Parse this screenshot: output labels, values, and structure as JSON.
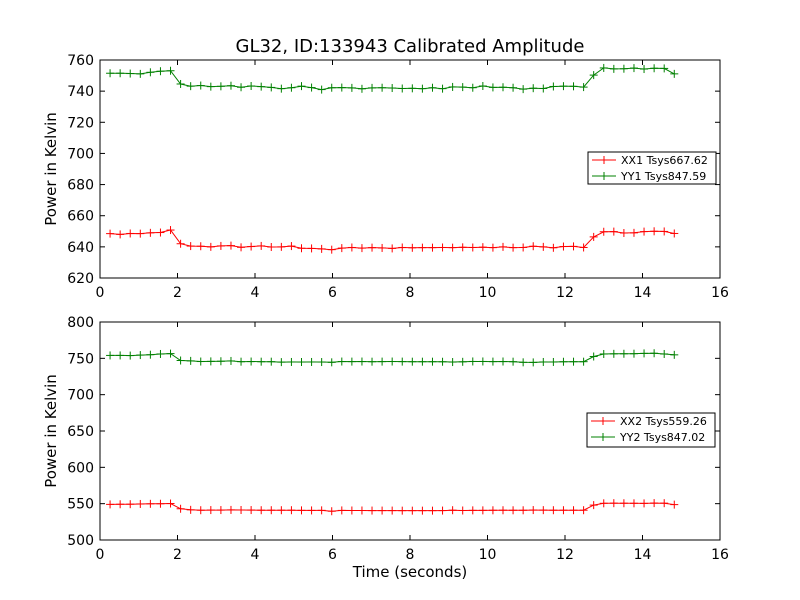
{
  "chart_data": [
    {
      "type": "line",
      "title": "GL32, ID:133943 Calibrated Amplitude",
      "xlabel": "",
      "ylabel": "Power in Kelvin",
      "xlim": [
        0,
        16
      ],
      "ylim": [
        620,
        760
      ],
      "xticks": [
        "0",
        "2",
        "4",
        "6",
        "8",
        "10",
        "12",
        "14",
        "16"
      ],
      "yticks": [
        "620",
        "640",
        "660",
        "680",
        "700",
        "720",
        "740",
        "760"
      ],
      "legend_position": "center-right",
      "x": [
        0.26,
        0.52,
        0.78,
        1.04,
        1.3,
        1.56,
        1.82,
        2.08,
        2.34,
        2.6,
        2.86,
        3.12,
        3.38,
        3.64,
        3.9,
        4.16,
        4.42,
        4.68,
        4.94,
        5.2,
        5.46,
        5.72,
        5.98,
        6.24,
        6.5,
        6.76,
        7.02,
        7.28,
        7.54,
        7.8,
        8.06,
        8.32,
        8.58,
        8.84,
        9.1,
        9.36,
        9.62,
        9.88,
        10.14,
        10.4,
        10.66,
        10.92,
        11.18,
        11.44,
        11.7,
        11.96,
        12.22,
        12.48,
        12.74,
        13.0,
        13.26,
        13.52,
        13.78,
        14.04,
        14.3,
        14.56,
        14.82
      ],
      "series": [
        {
          "name": "XX1 Tsys667.62",
          "color": "#ff0000",
          "values": [
            648.5,
            648.0,
            648.6,
            648.5,
            649.0,
            649.2,
            650.8,
            642.0,
            640.5,
            640.4,
            640.0,
            640.6,
            640.8,
            639.7,
            640.2,
            640.6,
            639.9,
            640.0,
            640.5,
            639.1,
            639.0,
            638.7,
            638.2,
            639.2,
            639.6,
            639.2,
            639.5,
            639.3,
            639.0,
            639.6,
            639.4,
            639.5,
            639.5,
            639.6,
            639.5,
            639.7,
            639.6,
            639.8,
            639.5,
            640.0,
            639.5,
            639.6,
            640.4,
            640.0,
            639.4,
            640.2,
            640.3,
            639.6,
            646.4,
            649.7,
            649.8,
            648.9,
            649.0,
            649.8,
            650.0,
            649.9,
            648.6
          ]
        },
        {
          "name": "YY1 Tsys847.59",
          "color": "#008000",
          "values": [
            751.5,
            751.5,
            751.3,
            751.1,
            752.1,
            752.8,
            753.1,
            744.6,
            743.2,
            743.6,
            742.9,
            743.1,
            743.5,
            742.5,
            743.3,
            742.9,
            742.4,
            741.6,
            742.2,
            743.2,
            742.3,
            741.0,
            742.2,
            742.3,
            742.1,
            741.5,
            742.1,
            742.2,
            742.0,
            741.7,
            741.8,
            741.6,
            742.2,
            741.6,
            742.7,
            742.6,
            742.2,
            743.3,
            742.4,
            742.5,
            742.2,
            741.3,
            741.9,
            741.7,
            743.0,
            743.2,
            743.1,
            742.6,
            750.3,
            754.9,
            754.3,
            754.4,
            754.8,
            754.2,
            754.7,
            754.6,
            751.1
          ]
        }
      ]
    },
    {
      "type": "line",
      "title": "",
      "xlabel": "Time (seconds)",
      "ylabel": "Power in Kelvin",
      "xlim": [
        0,
        16
      ],
      "ylim": [
        500,
        800
      ],
      "xticks": [
        "0",
        "2",
        "4",
        "6",
        "8",
        "10",
        "12",
        "14",
        "16"
      ],
      "yticks": [
        "500",
        "550",
        "600",
        "650",
        "700",
        "750",
        "800"
      ],
      "legend_position": "center-right",
      "x": [
        0.26,
        0.52,
        0.78,
        1.04,
        1.3,
        1.56,
        1.82,
        2.08,
        2.34,
        2.6,
        2.86,
        3.12,
        3.38,
        3.64,
        3.9,
        4.16,
        4.42,
        4.68,
        4.94,
        5.2,
        5.46,
        5.72,
        5.98,
        6.24,
        6.5,
        6.76,
        7.02,
        7.28,
        7.54,
        7.8,
        8.06,
        8.32,
        8.58,
        8.84,
        9.1,
        9.36,
        9.62,
        9.88,
        10.14,
        10.4,
        10.66,
        10.92,
        11.18,
        11.44,
        11.7,
        11.96,
        12.22,
        12.48,
        12.74,
        13.0,
        13.26,
        13.52,
        13.78,
        14.04,
        14.3,
        14.56,
        14.82
      ],
      "series": [
        {
          "name": "XX2 Tsys559.26",
          "color": "#ff0000",
          "values": [
            549.0,
            549.2,
            549.3,
            549.6,
            549.8,
            549.9,
            550.2,
            543.0,
            541.5,
            541.0,
            541.2,
            541.2,
            541.4,
            541.3,
            541.2,
            541.0,
            541.0,
            541.0,
            541.0,
            540.8,
            540.7,
            540.8,
            539.6,
            540.7,
            540.6,
            540.6,
            540.5,
            540.5,
            540.5,
            540.4,
            540.4,
            540.4,
            540.4,
            540.5,
            541.0,
            540.6,
            540.8,
            540.8,
            540.9,
            541.0,
            540.9,
            540.9,
            541.2,
            541.1,
            541.0,
            541.0,
            541.0,
            541.0,
            548.0,
            550.5,
            550.7,
            550.6,
            550.5,
            550.4,
            550.8,
            550.7,
            548.7
          ]
        },
        {
          "name": "YY2 Tsys847.02",
          "color": "#008000",
          "values": [
            754.0,
            754.0,
            753.8,
            754.5,
            755.0,
            756.0,
            756.5,
            747.0,
            746.5,
            745.6,
            745.8,
            746.0,
            746.4,
            745.4,
            745.6,
            745.4,
            745.4,
            744.8,
            745.0,
            744.9,
            745.0,
            744.9,
            744.5,
            745.6,
            745.5,
            745.6,
            745.4,
            745.5,
            745.6,
            745.5,
            745.4,
            745.4,
            745.4,
            745.3,
            744.9,
            745.2,
            745.7,
            745.7,
            745.5,
            745.6,
            745.4,
            744.5,
            744.4,
            745.0,
            745.0,
            745.3,
            745.4,
            745.4,
            752.5,
            756.0,
            756.2,
            756.3,
            756.4,
            756.8,
            757.0,
            756.0,
            754.8
          ]
        }
      ]
    }
  ]
}
